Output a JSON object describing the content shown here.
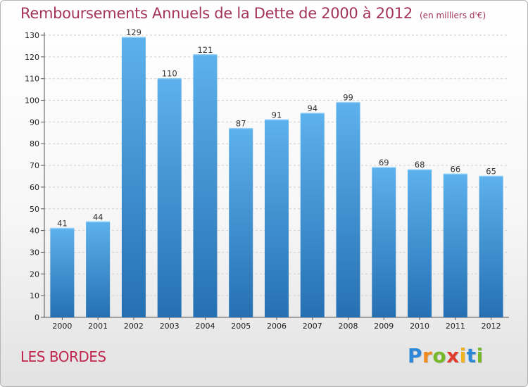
{
  "chart_data": {
    "type": "bar",
    "title": "Remboursements Annuels de la Dette de 2000 à 2012",
    "unit": "(en milliers d'€)",
    "categories": [
      "2000",
      "2001",
      "2002",
      "2003",
      "2004",
      "2005",
      "2006",
      "2007",
      "2008",
      "2009",
      "2010",
      "2011",
      "2012"
    ],
    "values": [
      41,
      44,
      129,
      110,
      121,
      87,
      91,
      94,
      99,
      69,
      68,
      66,
      65
    ],
    "ylim": [
      0,
      130
    ],
    "yticks": [
      0,
      10,
      20,
      30,
      40,
      50,
      60,
      70,
      80,
      90,
      100,
      110,
      120,
      130
    ],
    "grid": true,
    "bar_color": "#3a8fd3",
    "bar_color_light": "#5db1ec",
    "bar_color_dark": "#2570b2"
  },
  "commune": "LES BORDES",
  "brand": {
    "letters": [
      "P",
      "r",
      "o",
      "x",
      "i",
      "t",
      "i"
    ],
    "colors": [
      "#2e86d6",
      "#f08a1e",
      "#77b82a",
      "#e23c2c",
      "#f0b21e",
      "#2e86d6",
      "#77b82a"
    ]
  },
  "colors": {
    "title": "#a3345a",
    "commune": "#c0264e"
  }
}
